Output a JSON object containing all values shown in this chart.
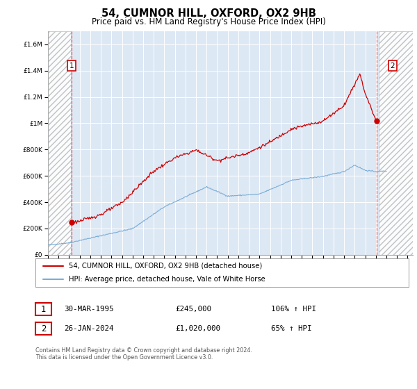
{
  "title": "54, CUMNOR HILL, OXFORD, OX2 9HB",
  "subtitle": "Price paid vs. HM Land Registry's House Price Index (HPI)",
  "title_fontsize": 10.5,
  "subtitle_fontsize": 8.5,
  "ytick_values": [
    0,
    200000,
    400000,
    600000,
    800000,
    1000000,
    1200000,
    1400000,
    1600000
  ],
  "ylim": [
    0,
    1700000
  ],
  "xlim_start": 1993.0,
  "xlim_end": 2027.5,
  "xticks": [
    1993,
    1994,
    1995,
    1996,
    1997,
    1998,
    1999,
    2000,
    2001,
    2002,
    2003,
    2004,
    2005,
    2006,
    2007,
    2008,
    2009,
    2010,
    2011,
    2012,
    2013,
    2014,
    2015,
    2016,
    2017,
    2018,
    2019,
    2020,
    2021,
    2022,
    2023,
    2024,
    2025,
    2026,
    2027
  ],
  "hatch_left_xmin": 1993.0,
  "hatch_left_xmax": 1995.2,
  "hatch_right_xmin": 2024.3,
  "hatch_right_xmax": 2027.5,
  "red_line_color": "#cc0000",
  "blue_line_color": "#7aadd4",
  "point1_x": 1995.25,
  "point1_y": 245000,
  "point2_x": 2024.07,
  "point2_y": 1020000,
  "dashed_line1_x": 1995.25,
  "dashed_line2_x": 2024.07,
  "legend_line1": "54, CUMNOR HILL, OXFORD, OX2 9HB (detached house)",
  "legend_line2": "HPI: Average price, detached house, Vale of White Horse",
  "table_row1_date": "30-MAR-1995",
  "table_row1_price": "£245,000",
  "table_row1_hpi": "106% ↑ HPI",
  "table_row2_date": "26-JAN-2024",
  "table_row2_price": "£1,020,000",
  "table_row2_hpi": "65% ↑ HPI",
  "footer": "Contains HM Land Registry data © Crown copyright and database right 2024.\nThis data is licensed under the Open Government Licence v3.0.",
  "bg_color": "#ffffff",
  "plot_bg_color": "#dde8f5",
  "grid_color": "#ffffff"
}
